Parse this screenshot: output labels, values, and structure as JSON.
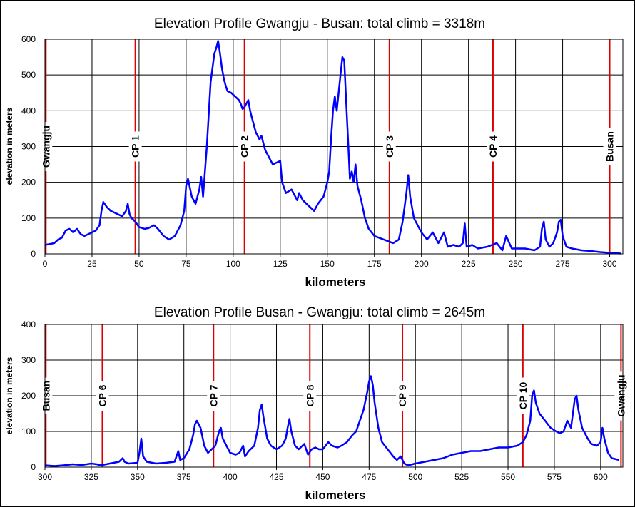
{
  "chart_data": [
    {
      "type": "line",
      "title": "Elevation Profile  Gwangju - Busan:   total climb = 3318m",
      "xlabel": "kilometers",
      "ylabel": "elevation in meters",
      "xlim": [
        0,
        307
      ],
      "ylim": [
        0,
        600
      ],
      "xticks": [
        0,
        25,
        50,
        75,
        100,
        125,
        150,
        175,
        200,
        225,
        250,
        275,
        300
      ],
      "yticks": [
        0,
        100,
        200,
        300,
        400,
        500,
        600
      ],
      "grid": true,
      "line_color": "#0000ff",
      "marker_color": "#dd0000",
      "markers": [
        {
          "x": 0.5,
          "label": "Gwangju"
        },
        {
          "x": 48,
          "label": "CP 1"
        },
        {
          "x": 106,
          "label": "CP 2"
        },
        {
          "x": 183,
          "label": "CP 3"
        },
        {
          "x": 238,
          "label": "CP 4"
        },
        {
          "x": 300,
          "label": "Busan"
        }
      ],
      "series": [
        {
          "x": [
            0,
            3,
            5,
            7,
            9,
            11,
            13,
            15,
            17,
            19,
            21,
            23,
            25,
            27,
            29,
            30,
            31,
            33,
            35,
            37,
            39,
            41,
            43,
            44,
            45,
            46,
            48,
            50,
            53,
            55,
            58,
            60,
            63,
            66,
            69,
            72,
            74,
            75,
            76,
            78,
            80,
            82,
            83,
            84,
            86,
            88,
            90,
            91,
            92,
            93,
            94,
            95,
            96,
            97,
            99,
            101,
            103,
            104,
            105,
            106,
            107,
            108,
            109,
            110,
            112,
            114,
            115,
            117,
            119,
            121,
            123,
            125,
            126,
            128,
            131,
            134,
            135,
            137,
            139,
            141,
            143,
            145,
            148,
            150,
            151,
            152,
            153,
            154,
            155,
            156,
            157,
            158,
            159,
            160,
            161,
            162,
            163,
            164,
            165,
            166,
            168,
            170,
            172,
            175,
            180,
            185,
            188,
            190,
            192,
            193,
            194,
            196,
            198,
            200,
            203,
            206,
            209,
            212,
            214,
            217,
            220,
            222,
            223,
            224,
            227,
            230,
            235,
            240,
            243,
            245,
            248,
            250,
            255,
            260,
            263,
            264,
            265,
            266,
            268,
            270,
            272,
            273,
            274,
            275,
            277,
            280,
            285,
            290,
            295,
            300,
            303,
            306
          ],
          "y": [
            25,
            28,
            30,
            40,
            45,
            65,
            70,
            60,
            70,
            55,
            50,
            55,
            60,
            65,
            80,
            120,
            145,
            130,
            120,
            115,
            110,
            105,
            120,
            140,
            110,
            100,
            90,
            75,
            70,
            72,
            80,
            70,
            50,
            40,
            50,
            80,
            120,
            190,
            210,
            160,
            140,
            180,
            215,
            160,
            300,
            480,
            560,
            575,
            595,
            560,
            520,
            490,
            470,
            455,
            450,
            440,
            430,
            420,
            405,
            410,
            420,
            430,
            400,
            380,
            340,
            320,
            330,
            290,
            270,
            250,
            255,
            260,
            200,
            170,
            180,
            150,
            170,
            150,
            140,
            130,
            120,
            140,
            160,
            200,
            230,
            320,
            400,
            440,
            400,
            450,
            500,
            550,
            540,
            430,
            320,
            210,
            230,
            200,
            250,
            190,
            150,
            100,
            70,
            50,
            40,
            30,
            40,
            90,
            170,
            220,
            160,
            100,
            80,
            60,
            40,
            60,
            30,
            60,
            20,
            25,
            20,
            30,
            85,
            20,
            25,
            15,
            20,
            30,
            10,
            50,
            15,
            15,
            15,
            10,
            20,
            70,
            90,
            40,
            20,
            30,
            60,
            90,
            95,
            50,
            20,
            15,
            10,
            8,
            5,
            3,
            2,
            1
          ]
        }
      ]
    },
    {
      "type": "line",
      "title": "Elevation Profile  Busan - Gwangju:   total climb = 2645m",
      "xlabel": "kilometers",
      "ylabel": "elevation in meters",
      "xlim": [
        300,
        612
      ],
      "ylim": [
        0,
        400
      ],
      "xticks": [
        300,
        325,
        350,
        375,
        400,
        425,
        450,
        475,
        500,
        525,
        550,
        575,
        600
      ],
      "yticks": [
        0,
        100,
        200,
        300,
        400
      ],
      "grid": true,
      "line_color": "#0000ff",
      "marker_color": "#dd0000",
      "markers": [
        {
          "x": 300.5,
          "label": "Busan"
        },
        {
          "x": 331,
          "label": "CP 6"
        },
        {
          "x": 391,
          "label": "CP 7"
        },
        {
          "x": 443,
          "label": "CP 8"
        },
        {
          "x": 493,
          "label": "CP 9"
        },
        {
          "x": 558,
          "label": "CP 10"
        },
        {
          "x": 611,
          "label": "Gwangju"
        }
      ],
      "series": [
        {
          "x": [
            300,
            305,
            310,
            315,
            320,
            325,
            328,
            330,
            335,
            340,
            342,
            343,
            345,
            350,
            351,
            352,
            353,
            355,
            360,
            365,
            370,
            372,
            373,
            375,
            378,
            380,
            381,
            382,
            384,
            386,
            388,
            390,
            392,
            394,
            395,
            396,
            398,
            400,
            403,
            405,
            407,
            408,
            410,
            413,
            415,
            416,
            417,
            418,
            420,
            422,
            425,
            428,
            430,
            431,
            432,
            433,
            435,
            437,
            440,
            442,
            444,
            446,
            448,
            450,
            453,
            455,
            458,
            460,
            463,
            466,
            468,
            470,
            472,
            474,
            475,
            476,
            477,
            478,
            480,
            482,
            485,
            488,
            490,
            492,
            494,
            496,
            500,
            505,
            510,
            515,
            520,
            525,
            530,
            535,
            540,
            545,
            550,
            555,
            558,
            560,
            562,
            563,
            564,
            565,
            567,
            570,
            573,
            576,
            578,
            580,
            582,
            584,
            585,
            586,
            587,
            588,
            590,
            593,
            595,
            598,
            600,
            601,
            602,
            604,
            606,
            610
          ],
          "y": [
            5,
            3,
            5,
            8,
            6,
            10,
            8,
            5,
            10,
            15,
            25,
            15,
            10,
            12,
            40,
            80,
            30,
            15,
            10,
            12,
            15,
            45,
            20,
            25,
            50,
            90,
            120,
            130,
            110,
            60,
            40,
            50,
            60,
            100,
            110,
            80,
            60,
            40,
            35,
            40,
            60,
            30,
            45,
            60,
            110,
            160,
            175,
            140,
            80,
            60,
            50,
            60,
            80,
            110,
            135,
            100,
            60,
            50,
            65,
            35,
            50,
            55,
            50,
            50,
            70,
            60,
            55,
            60,
            70,
            90,
            100,
            130,
            160,
            210,
            240,
            255,
            230,
            180,
            110,
            70,
            50,
            30,
            20,
            30,
            10,
            5,
            10,
            15,
            20,
            25,
            35,
            40,
            45,
            45,
            50,
            55,
            55,
            60,
            70,
            90,
            130,
            200,
            215,
            180,
            150,
            130,
            110,
            100,
            95,
            100,
            130,
            110,
            150,
            190,
            200,
            160,
            110,
            80,
            65,
            60,
            70,
            110,
            80,
            40,
            25,
            20
          ]
        }
      ]
    }
  ]
}
